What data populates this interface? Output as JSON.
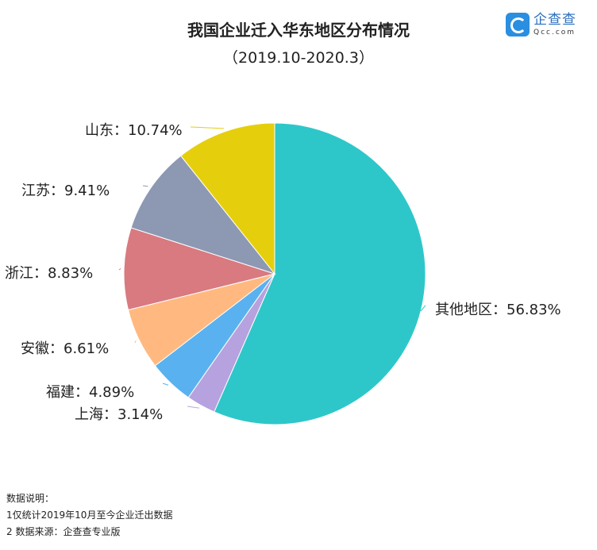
{
  "header": {
    "title": "我国企业迁入华东地区分布情况",
    "subtitle": "（2019.10-2020.3）"
  },
  "logo": {
    "cn": "企查查",
    "en": "Qcc.com"
  },
  "notes": {
    "heading": "数据说明：",
    "line1": "1仅统计2019年10月至今企业迁出数据",
    "line2": "2 数据来源：企查查专业版"
  },
  "labels": {
    "other": "其他地区：56.83%",
    "shanghai": "上海：3.14%",
    "fujian": "福建：4.89%",
    "anhui": "安徽：6.61%",
    "zhejiang": "浙江：8.83%",
    "jiangsu": "江苏：9.41%",
    "shandong": "山东：10.74%"
  },
  "chart_data": {
    "type": "pie",
    "title": "我国企业迁入华东地区分布情况",
    "subtitle": "（2019.10-2020.3）",
    "start_angle": "12 o'clock, clockwise",
    "categories": [
      "其他地区",
      "上海",
      "福建",
      "安徽",
      "浙江",
      "江苏",
      "山东"
    ],
    "values": [
      56.83,
      3.14,
      4.89,
      6.61,
      8.83,
      9.41,
      10.74
    ],
    "colors": [
      "#2ec7c9",
      "#b6a2de",
      "#5ab1ef",
      "#ffb980",
      "#d87a80",
      "#8d98b3",
      "#e5cf0d"
    ],
    "unit": "%",
    "legend": "none (outside labels with leader lines)"
  }
}
